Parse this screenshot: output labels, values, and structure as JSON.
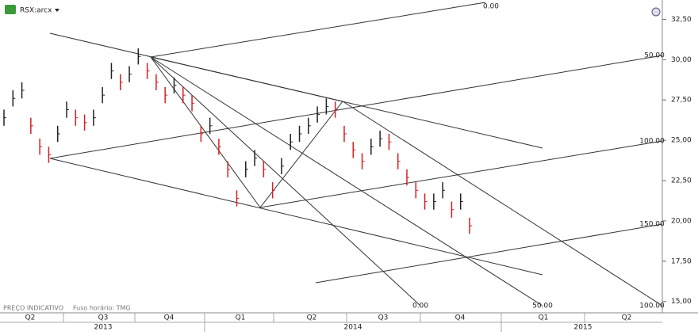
{
  "header": {
    "symbol": "RSX:arcx"
  },
  "footer": {
    "note": "PREÇO INDICATIVO",
    "timezone": "Fuso horário: TMG"
  },
  "chart_data": {
    "type": "ohlc",
    "categories": [
      null,
      null,
      null,
      null,
      null,
      null,
      null,
      null,
      null,
      null,
      null,
      null,
      null,
      null,
      null,
      null,
      null,
      null,
      null,
      null,
      null,
      null,
      null,
      null,
      null,
      null,
      null,
      null,
      null,
      null,
      null,
      null,
      null,
      null,
      null,
      null,
      null,
      null,
      null,
      null,
      null,
      null,
      null,
      null,
      null,
      null,
      null,
      null,
      null,
      null,
      null,
      null,
      null
    ],
    "high": [
      26.9,
      28.1,
      28.6,
      26.4,
      25.1,
      24.6,
      25.9,
      27.4,
      26.9,
      26.6,
      26.9,
      28.3,
      29.8,
      29.1,
      29.6,
      30.7,
      29.8,
      29.1,
      28.3,
      28.9,
      28.3,
      27.8,
      25.9,
      26.4,
      25.1,
      23.7,
      21.9,
      23.7,
      24.4,
      23.7,
      22.4,
      23.9,
      25.4,
      25.9,
      26.4,
      27.1,
      27.6,
      27.4,
      25.9,
      24.9,
      24.2,
      25.1,
      25.6,
      25.4,
      24.2,
      23.2,
      22.4,
      21.7,
      21.7,
      22.4,
      21.2,
      21.7,
      20.2
    ],
    "low": [
      25.9,
      27.1,
      27.6,
      25.4,
      24.1,
      23.6,
      24.9,
      26.4,
      25.9,
      25.6,
      25.9,
      27.3,
      28.8,
      28.1,
      28.6,
      29.7,
      28.8,
      28.1,
      27.3,
      27.9,
      27.3,
      26.8,
      24.9,
      25.4,
      24.1,
      22.7,
      20.9,
      22.7,
      23.4,
      22.7,
      21.4,
      22.9,
      24.4,
      24.9,
      25.4,
      26.1,
      26.6,
      26.4,
      24.9,
      23.9,
      23.2,
      24.1,
      24.6,
      24.4,
      23.2,
      22.2,
      21.4,
      20.7,
      20.7,
      21.4,
      20.2,
      20.7,
      19.2
    ],
    "close": [
      26.4,
      27.6,
      28.1,
      25.9,
      24.6,
      24.1,
      25.4,
      26.9,
      26.4,
      26.1,
      26.4,
      27.8,
      29.3,
      28.6,
      29.1,
      30.2,
      29.3,
      28.6,
      27.8,
      28.4,
      27.8,
      27.3,
      25.4,
      25.9,
      24.6,
      23.2,
      21.4,
      23.2,
      23.9,
      23.2,
      21.9,
      23.4,
      24.9,
      25.4,
      25.9,
      26.6,
      27.1,
      26.9,
      25.4,
      24.4,
      23.7,
      24.6,
      25.1,
      24.9,
      23.7,
      22.7,
      21.9,
      21.2,
      21.2,
      21.9,
      20.7,
      21.2,
      19.7
    ],
    "up_color": "#222222",
    "down_color": "#d42020",
    "ylim": [
      14.3,
      33.7
    ],
    "yticks": [
      {
        "value": 15,
        "label": "15,00"
      },
      {
        "value": 17.5,
        "label": "17,50"
      },
      {
        "value": 20,
        "label": "20,00"
      },
      {
        "value": 22.5,
        "label": "22,50"
      },
      {
        "value": 25,
        "label": "25,00"
      },
      {
        "value": 27.5,
        "label": "27,50"
      },
      {
        "value": 30,
        "label": "30,00"
      },
      {
        "value": 32.5,
        "label": "32,50"
      }
    ],
    "quarters": [
      "Q2",
      "Q3",
      "Q4",
      "Q1",
      "Q2",
      "Q3",
      "Q4",
      "Q1",
      "Q2"
    ],
    "years": [
      "2013",
      "2014",
      "2015"
    ],
    "annotations": [
      "0.00",
      "50.00",
      "100.00",
      "0.00",
      "50.00",
      "100.00",
      "150.00"
    ]
  }
}
